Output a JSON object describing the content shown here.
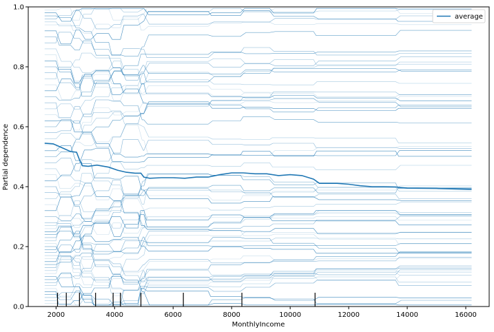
{
  "chart_data": {
    "type": "line",
    "title": "",
    "xlabel": "MonthlyIncome",
    "ylabel": "Partial dependence",
    "xlim": [
      1050,
      16800
    ],
    "ylim": [
      0,
      1
    ],
    "xticks": [
      2000,
      4000,
      6000,
      8000,
      10000,
      12000,
      14000,
      16000
    ],
    "yticks": [
      0.0,
      0.2,
      0.4,
      0.6,
      0.8,
      1.0
    ],
    "legend": {
      "placement": "top-right",
      "entries": [
        "average"
      ]
    },
    "grid": false,
    "series": [
      {
        "name": "average",
        "color": "#1f77b4",
        "x": [
          1610,
          1900,
          2200,
          2500,
          2700,
          2800,
          2900,
          3100,
          3400,
          3800,
          4100,
          4400,
          4700,
          4900,
          5000,
          5200,
          5600,
          6000,
          6400,
          6800,
          7200,
          7600,
          8000,
          8400,
          8800,
          9200,
          9600,
          10000,
          10400,
          10800,
          11000,
          11600,
          12000,
          12400,
          12800,
          13200,
          13600,
          14000,
          15000,
          16200
        ],
        "y": [
          0.545,
          0.543,
          0.53,
          0.517,
          0.515,
          0.49,
          0.47,
          0.468,
          0.472,
          0.465,
          0.455,
          0.448,
          0.445,
          0.445,
          0.432,
          0.428,
          0.43,
          0.43,
          0.428,
          0.432,
          0.432,
          0.44,
          0.446,
          0.446,
          0.443,
          0.443,
          0.437,
          0.44,
          0.437,
          0.425,
          0.411,
          0.411,
          0.408,
          0.403,
          0.4,
          0.4,
          0.399,
          0.395,
          0.394,
          0.391
        ]
      }
    ],
    "individual_curves": {
      "description": "",
      "x_range": [
        1610,
        16200
      ],
      "steps": [
        2000,
        2500,
        2800,
        3200,
        3800,
        4200,
        4800,
        5000,
        7200,
        8300,
        9300,
        10800,
        13600
      ],
      "start_levels": [
        0.01,
        0.02,
        0.03,
        0.04,
        0.05,
        0.06,
        0.07,
        0.08,
        0.09,
        0.1,
        0.11,
        0.12,
        0.13,
        0.14,
        0.15,
        0.16,
        0.17,
        0.18,
        0.19,
        0.2,
        0.21,
        0.22,
        0.23,
        0.24,
        0.25,
        0.26,
        0.27,
        0.28,
        0.3,
        0.32,
        0.34,
        0.36,
        0.38,
        0.4,
        0.42,
        0.44,
        0.46,
        0.48,
        0.5,
        0.52,
        0.54,
        0.56,
        0.58,
        0.6,
        0.62,
        0.64,
        0.66,
        0.68,
        0.7,
        0.72,
        0.74,
        0.76,
        0.78,
        0.8,
        0.82,
        0.84,
        0.86,
        0.88,
        0.9,
        0.92,
        0.94,
        0.95,
        0.96,
        0.97,
        0.98,
        0.99
      ]
    },
    "rug": [
      2050,
      2350,
      2800,
      3350,
      3950,
      4200,
      4900,
      6350,
      8350,
      10850
    ]
  }
}
